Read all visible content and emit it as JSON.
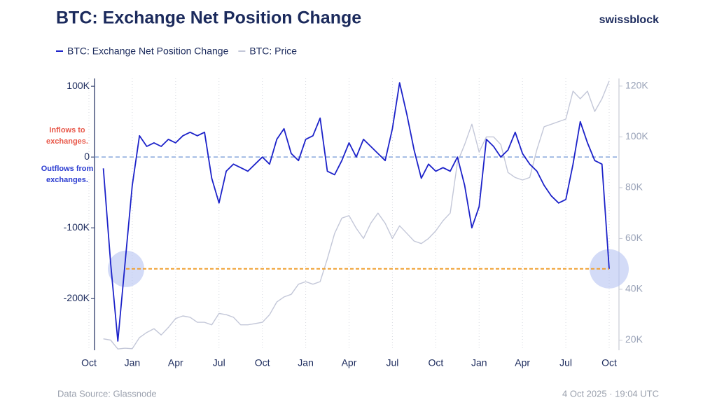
{
  "chart_data": {
    "type": "line",
    "title": "BTC: Exchange Net Position Change",
    "brand": "swissblock",
    "source": "Data Source: Glassnode",
    "timestamp": "4 Oct 2025 · 19:04 UTC",
    "annotations": [
      {
        "text": "Inflows to exchanges.",
        "color": "#e8584a"
      },
      {
        "text": "Outflows from exchanges.",
        "color": "#2a3bd0"
      }
    ],
    "categories": [
      "Oct",
      null,
      null,
      null,
      null,
      null,
      "Jan",
      null,
      null,
      null,
      null,
      null,
      "Apr",
      null,
      null,
      null,
      null,
      null,
      "Jul",
      null,
      null,
      null,
      null,
      null,
      "Oct",
      null,
      null,
      null,
      null,
      null,
      "Jan",
      null,
      null,
      null,
      null,
      null,
      "Apr",
      null,
      null,
      null,
      null,
      null,
      "Jul",
      null,
      null,
      null,
      null,
      null,
      "Oct",
      null,
      null,
      null,
      null,
      null,
      "Jan",
      null,
      null,
      null,
      null,
      null,
      "Apr",
      null,
      null,
      null,
      null,
      null,
      "Jul",
      null,
      null,
      null,
      null,
      null,
      "Oct"
    ],
    "series": [
      {
        "name": "BTC: Exchange Net Position Change",
        "color": "#1c22c9",
        "axis": "y",
        "values": [
          null,
          null,
          -16000,
          -150000,
          -260000,
          -150000,
          -40000,
          30000,
          15000,
          20000,
          15000,
          25000,
          20000,
          30000,
          35000,
          30000,
          35000,
          -30000,
          -65000,
          -20000,
          -10000,
          -15000,
          -20000,
          -10000,
          0,
          -10000,
          25000,
          40000,
          5000,
          -5000,
          25000,
          30000,
          55000,
          -20000,
          -25000,
          -5000,
          20000,
          0,
          25000,
          15000,
          5000,
          -5000,
          40000,
          105000,
          60000,
          10000,
          -30000,
          -10000,
          -20000,
          -15000,
          -20000,
          0,
          -40000,
          -100000,
          -70000,
          25000,
          15000,
          0,
          10000,
          35000,
          5000,
          -10000,
          -20000,
          -40000,
          -55000,
          -65000,
          -60000,
          -10000,
          50000,
          20000,
          -5000,
          -10000,
          -158000
        ]
      },
      {
        "name": "BTC: Price",
        "color": "#c3c7d8",
        "axis": "y2",
        "values": [
          null,
          null,
          20500,
          20000,
          16500,
          16800,
          16600,
          21000,
          23000,
          24500,
          22000,
          25000,
          28500,
          29500,
          29000,
          27000,
          27000,
          26000,
          30500,
          30000,
          29000,
          26000,
          26000,
          26500,
          27000,
          30000,
          35000,
          37000,
          38000,
          42000,
          43000,
          42000,
          43000,
          52000,
          62000,
          68000,
          69000,
          64000,
          60000,
          66000,
          70000,
          66000,
          60000,
          65000,
          62000,
          59000,
          58000,
          60000,
          63000,
          67000,
          70000,
          90000,
          97000,
          105000,
          94000,
          100000,
          100000,
          97000,
          86000,
          84000,
          83000,
          84000,
          95000,
          104000,
          105000,
          106000,
          107000,
          118000,
          115000,
          118000,
          110000,
          115000,
          122000
        ]
      }
    ],
    "ylim": [
      -273000,
      111000
    ],
    "yticks": [
      {
        "value": -200000,
        "label": "-200K"
      },
      {
        "value": -100000,
        "label": "-100K"
      },
      0,
      {
        "value": 100000,
        "label": "100K"
      }
    ],
    "y2lim": [
      16000,
      123000
    ],
    "y2ticks": [
      {
        "value": 20000,
        "label": "20K"
      },
      {
        "value": 40000,
        "label": "40K"
      },
      {
        "value": 60000,
        "label": "60K"
      },
      {
        "value": 80000,
        "label": "80K"
      },
      {
        "value": 100000,
        "label": "100K"
      },
      {
        "value": 120000,
        "label": "120K"
      }
    ],
    "hlines": [
      {
        "value": 0,
        "color": "#86a6dc"
      },
      {
        "value": -158000,
        "color": "#f0a030"
      }
    ],
    "grid": true
  }
}
